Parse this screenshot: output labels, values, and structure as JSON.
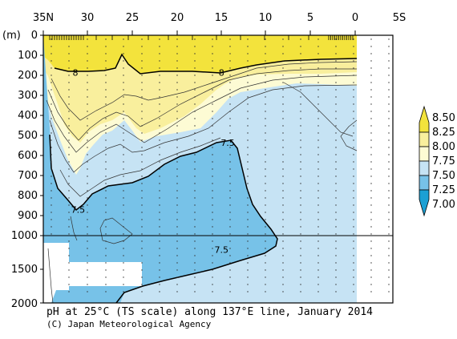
{
  "chart_data": {
    "type": "heatmap",
    "title": "pH at 25°C (TS scale) along 137°E line, January 2014",
    "credit": "(C) Japan Meteorological Agency",
    "ylabel": "(m)",
    "x_ticks": [
      "35N",
      "30",
      "25",
      "20",
      "15",
      "10",
      "5",
      "0",
      "5S"
    ],
    "y_ticks": [
      "0",
      "100",
      "200",
      "300",
      "400",
      "500",
      "600",
      "700",
      "800",
      "900",
      "1000",
      "1500",
      "2000"
    ],
    "y_upper_range": [
      0,
      1000
    ],
    "y_lower_range": [
      1000,
      2000
    ],
    "x_range_lat": [
      35,
      -5
    ],
    "colorbar": {
      "ticks": [
        "8.50",
        "8.25",
        "8.00",
        "7.75",
        "7.50",
        "7.25",
        "7.00"
      ],
      "levels": [
        {
          "range": [
            8.25,
            8.5
          ],
          "color": "#f3e33c"
        },
        {
          "range": [
            8.0,
            8.25
          ],
          "color": "#f9ef9d"
        },
        {
          "range": [
            7.75,
            8.0
          ],
          "color": "#fdfbd4"
        },
        {
          "range": [
            7.5,
            7.75
          ],
          "color": "#c6e3f4"
        },
        {
          "range": [
            7.25,
            7.5
          ],
          "color": "#77c2e8"
        },
        {
          "range": [
            7.0,
            7.25
          ],
          "color": "#1ba0d4"
        }
      ]
    },
    "contour_labels": [
      {
        "text": "8",
        "lat": 31.4,
        "depth": 185
      },
      {
        "text": "8",
        "lat": 15.0,
        "depth": 185
      },
      {
        "text": "7.5",
        "lat": 14.3,
        "depth": 535
      },
      {
        "text": "7.5",
        "lat": 31.1,
        "depth": 870
      },
      {
        "text": "7.5",
        "lat": 15.0,
        "depth": 1210
      }
    ],
    "grid": false
  }
}
